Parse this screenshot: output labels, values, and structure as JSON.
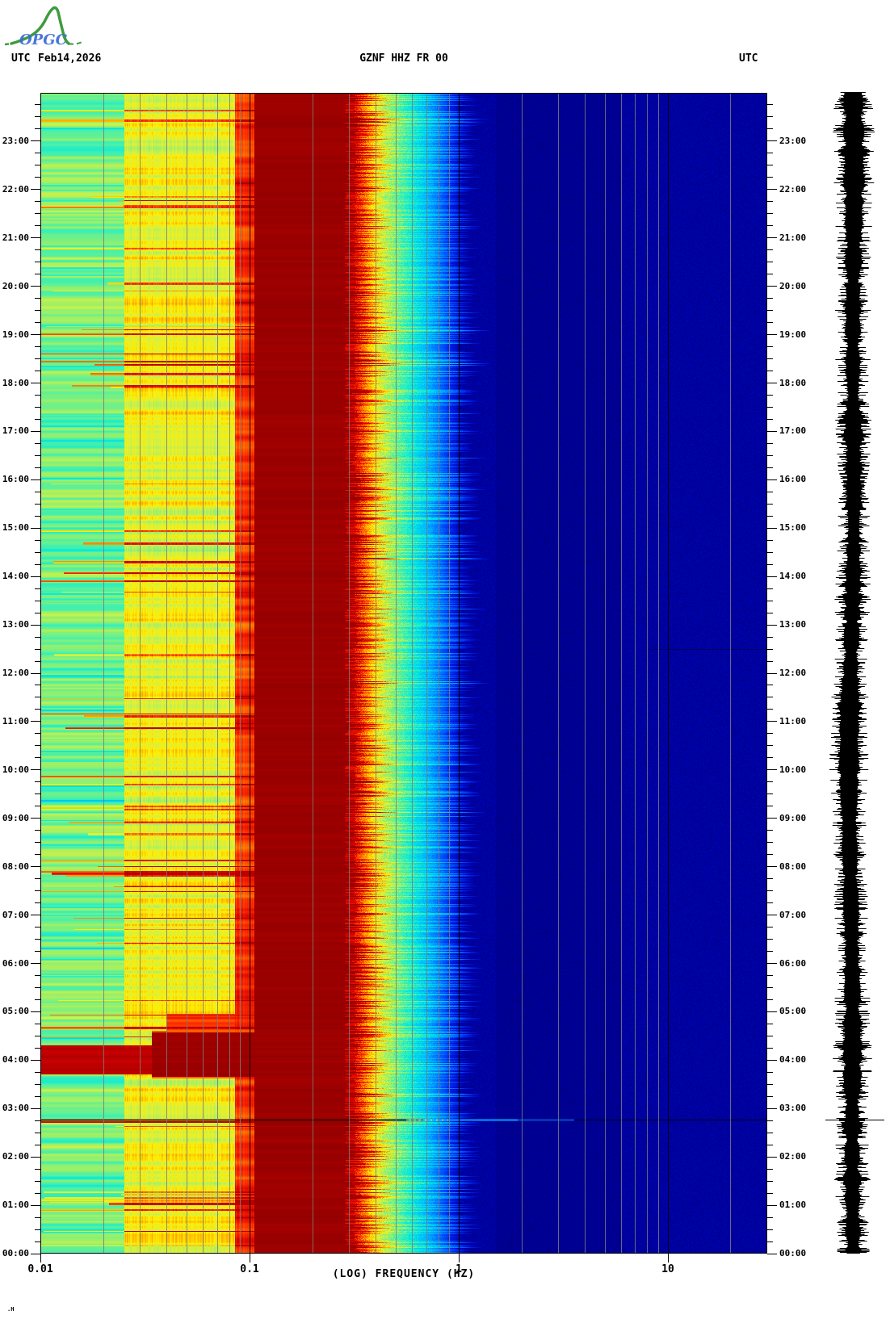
{
  "header": {
    "utc_left": "UTC",
    "date": "Feb14,2026",
    "title": "GZNF HHZ FR 00",
    "utc_right": "UTC"
  },
  "logo": {
    "text": "OPGC",
    "text_color": "#3a6bd6",
    "curve_color": "#3f9b3f"
  },
  "footer_mark": ".H",
  "chart_data": {
    "type": "heatmap",
    "subtype": "seismic-spectrogram-with-trace",
    "title": "GZNF HHZ FR 00",
    "station": "GZNF",
    "channel": "HHZ",
    "network": "FR",
    "location": "00",
    "date": "Feb14,2026",
    "timezone": "UTC",
    "xlabel": "(LOG) FREQUENCY (HZ)",
    "x_scale": "log",
    "x_range_hz": [
      0.01,
      30
    ],
    "x_ticks": [
      {
        "value": 0.01,
        "label": "0.01"
      },
      {
        "value": 0.1,
        "label": "0.1"
      },
      {
        "value": 1,
        "label": "1"
      },
      {
        "value": 10,
        "label": "10"
      }
    ],
    "y_axis_direction": "time increases upward, 00:00 at bottom, 24:00 at top",
    "y_hour_labels": [
      "00:00",
      "01:00",
      "02:00",
      "03:00",
      "04:00",
      "05:00",
      "06:00",
      "07:00",
      "08:00",
      "09:00",
      "10:00",
      "11:00",
      "12:00",
      "13:00",
      "14:00",
      "15:00",
      "16:00",
      "17:00",
      "18:00",
      "19:00",
      "20:00",
      "21:00",
      "22:00",
      "23:00"
    ],
    "minor_tick_minutes": 15,
    "grid": {
      "decade_lines_hz": [
        0.1,
        1,
        10
      ],
      "decade_line_color": "#000000",
      "minor_line_color": "#7a7a7a",
      "border_color": "#000000"
    },
    "colormap_stops": [
      [
        0.0,
        "#000072"
      ],
      [
        0.05,
        "#0000a0"
      ],
      [
        0.12,
        "#0018e0"
      ],
      [
        0.2,
        "#0060ff"
      ],
      [
        0.3,
        "#00b4ff"
      ],
      [
        0.4,
        "#00e8e0"
      ],
      [
        0.48,
        "#40f0b0"
      ],
      [
        0.56,
        "#90f070"
      ],
      [
        0.64,
        "#d8f040"
      ],
      [
        0.7,
        "#ffee00"
      ],
      [
        0.78,
        "#ff9800"
      ],
      [
        0.86,
        "#ff3000"
      ],
      [
        0.93,
        "#d40000"
      ],
      [
        1.0,
        "#8a0000"
      ]
    ],
    "bands": [
      {
        "name": "low-cyan-striped",
        "f_hz": [
          0.01,
          0.025
        ],
        "v_base": 0.4,
        "v_stripe": 0.26
      },
      {
        "name": "mid-green-yellow",
        "f_hz": [
          0.025,
          0.085
        ],
        "v_base": 0.55,
        "v_stripe": 0.24
      },
      {
        "name": "pre-microseism-orange",
        "f_hz": [
          0.085,
          0.105
        ],
        "v_base": 0.78,
        "v_stripe": 0.18
      },
      {
        "name": "microseism-saturated",
        "f_hz": [
          0.105,
          0.295
        ],
        "v_base": 0.975
      },
      {
        "name": "jagged-transition",
        "f_hz": [
          0.295,
          1.0
        ]
      },
      {
        "name": "quiet-navy",
        "f_hz": [
          1.0,
          30
        ],
        "v_base": 0.052,
        "darker_f_hz": [
          1.5,
          6
        ],
        "v_darker": 0.037
      }
    ],
    "events": [
      {
        "name": "earthquake",
        "time_h": 2.77,
        "time_label": "02:46",
        "freq_extent_hz": [
          0.01,
          30
        ],
        "trace_spike": true
      },
      {
        "name": "noise-burst-blob",
        "time_h": [
          3.67,
          4.58
        ],
        "f_hz": [
          0.022,
          0.105
        ]
      },
      {
        "name": "noise-burst-left-column",
        "time_h": [
          3.72,
          4.3
        ],
        "f_hz": [
          0.01,
          0.022
        ]
      },
      {
        "name": "orange-band",
        "time_h": [
          4.6,
          4.95
        ],
        "f_hz": [
          0.04,
          0.105
        ]
      },
      {
        "name": "hf-faint-line",
        "time_h": 12.5,
        "f_hz": [
          8,
          30
        ]
      }
    ],
    "random_red_lines": {
      "count": 70,
      "f_max_hz": 0.105
    },
    "trace": {
      "color": "#000000",
      "spike_time_h": 2.77
    }
  }
}
